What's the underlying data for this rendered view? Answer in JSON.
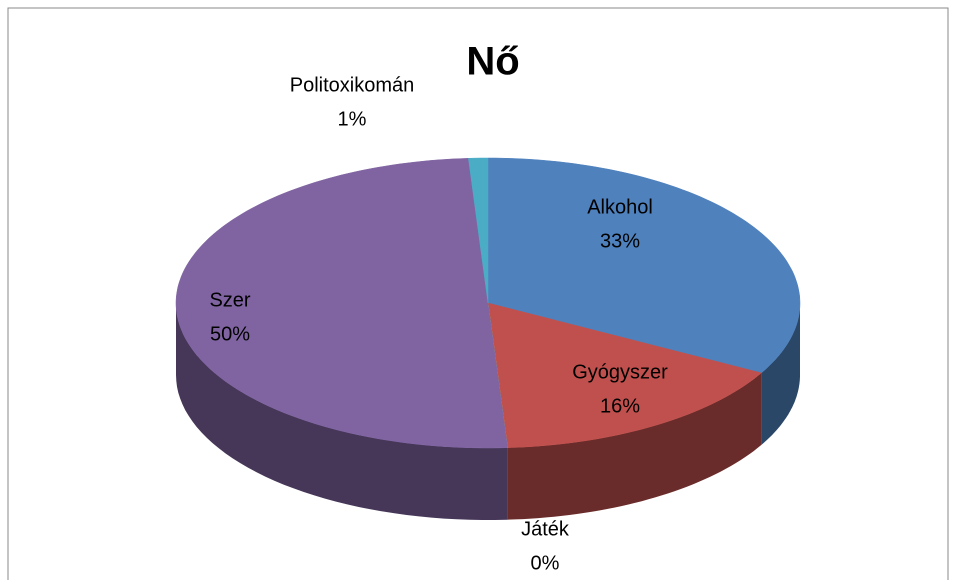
{
  "chart_data": {
    "type": "pie",
    "title": "Nő",
    "categories": [
      "Alkohol",
      "Gyógyszer",
      "Játék",
      "Szer",
      "Politoxikomán"
    ],
    "values": [
      33,
      16,
      0,
      50,
      1
    ],
    "value_labels": [
      "33%",
      "16%",
      "0%",
      "50%",
      "1%"
    ],
    "colors": [
      "#4f81bd",
      "#c0504d",
      "#9bbb59",
      "#8064a2",
      "#4bacc6"
    ]
  }
}
